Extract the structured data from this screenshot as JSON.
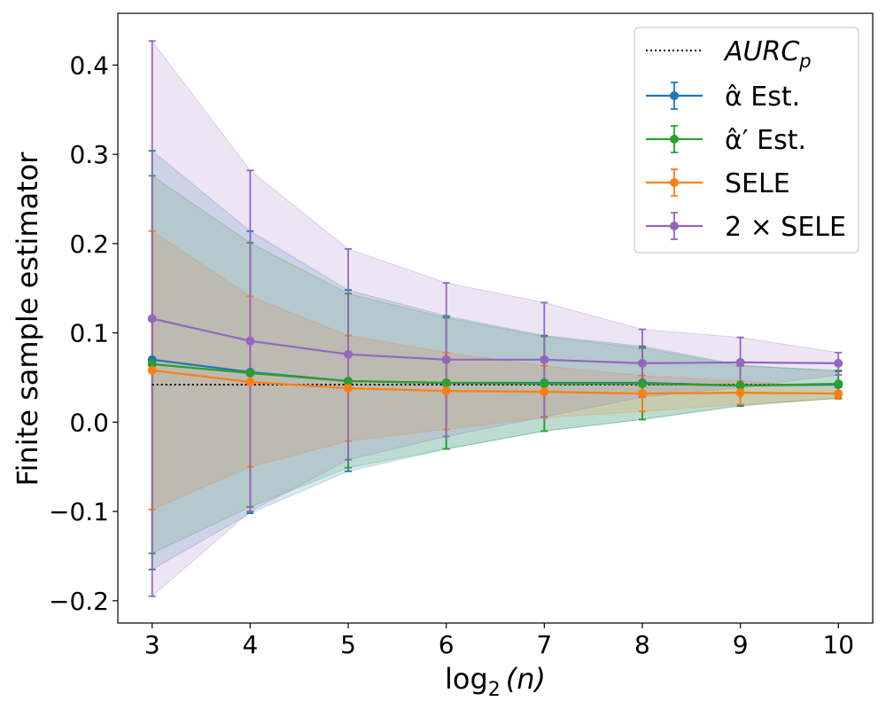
{
  "chart_data": {
    "type": "line",
    "xlabel": "log",
    "xlabel_sub": "2",
    "xlabel_arg": "(n)",
    "ylabel": "Finite sample estimator",
    "xlim": [
      2.65,
      10.35
    ],
    "ylim": [
      -0.225,
      0.458
    ],
    "xticks": [
      "3",
      "4",
      "5",
      "6",
      "7",
      "8",
      "9",
      "10"
    ],
    "xtick_values": [
      3,
      4,
      5,
      6,
      7,
      8,
      9,
      10
    ],
    "yticks": [
      "−0.2",
      "−0.1",
      "0.0",
      "0.1",
      "0.2",
      "0.3",
      "0.4"
    ],
    "ytick_values": [
      -0.2,
      -0.1,
      0.0,
      0.1,
      0.2,
      0.3,
      0.4
    ],
    "grid": false,
    "legend_position": "top-right",
    "x": [
      3,
      4,
      5,
      6,
      7,
      8,
      9,
      10
    ],
    "reference_line": {
      "name": "AURC",
      "name_sub": "p",
      "y": 0.042,
      "x_range": [
        3,
        10
      ],
      "color": "#000000",
      "style": "dotted"
    },
    "series": [
      {
        "name": "α̂ Est.",
        "color": "#1f77b4",
        "values": [
          0.07,
          0.056,
          0.046,
          0.044,
          0.044,
          0.044,
          0.041,
          0.042
        ],
        "lower": [
          -0.165,
          -0.102,
          -0.055,
          -0.03,
          -0.01,
          0.003,
          0.018,
          0.027
        ],
        "upper": [
          0.304,
          0.214,
          0.148,
          0.119,
          0.097,
          0.085,
          0.064,
          0.057
        ]
      },
      {
        "name": "α̂′ Est.",
        "color": "#2ca02c",
        "values": [
          0.065,
          0.055,
          0.046,
          0.044,
          0.043,
          0.043,
          0.041,
          0.043
        ],
        "lower": [
          -0.147,
          -0.095,
          -0.051,
          -0.03,
          -0.01,
          0.003,
          0.019,
          0.027
        ],
        "upper": [
          0.276,
          0.201,
          0.144,
          0.117,
          0.096,
          0.083,
          0.063,
          0.058
        ]
      },
      {
        "name": "SELE",
        "color": "#ff7f0e",
        "values": [
          0.058,
          0.045,
          0.038,
          0.035,
          0.034,
          0.032,
          0.033,
          0.032
        ],
        "lower": [
          -0.098,
          -0.05,
          -0.021,
          -0.008,
          0.005,
          0.012,
          0.02,
          0.026
        ],
        "upper": [
          0.214,
          0.141,
          0.097,
          0.078,
          0.063,
          0.052,
          0.046,
          0.039
        ]
      },
      {
        "name": "2 × SELE",
        "color": "#9467bd",
        "values": [
          0.116,
          0.091,
          0.076,
          0.07,
          0.07,
          0.066,
          0.067,
          0.066
        ],
        "lower": [
          -0.195,
          -0.1,
          -0.042,
          -0.016,
          0.006,
          0.028,
          0.039,
          0.053
        ],
        "upper": [
          0.427,
          0.282,
          0.194,
          0.156,
          0.134,
          0.104,
          0.095,
          0.078
        ]
      }
    ]
  }
}
